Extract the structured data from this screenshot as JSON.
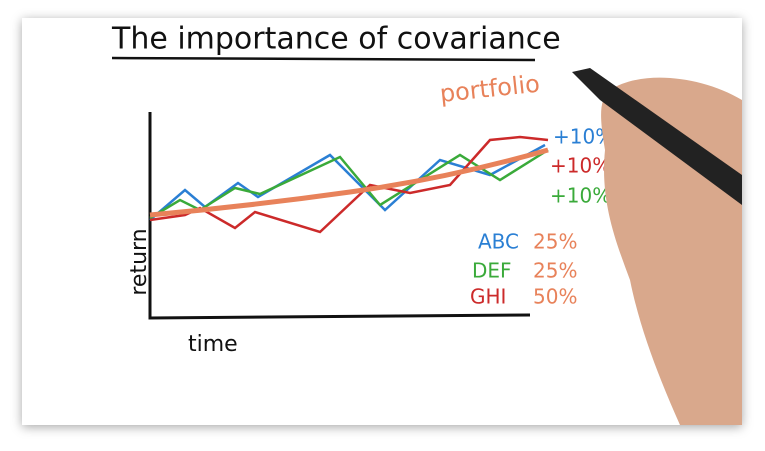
{
  "title": "The importance of covariance",
  "portfolio_label": "portfolio",
  "axes": {
    "y_label": "return",
    "x_label": "time"
  },
  "changes": [
    {
      "label": "+10%",
      "color": "#2a7fd4"
    },
    {
      "label": "+10%",
      "color": "#cc2a2a"
    },
    {
      "label": "+10%",
      "color": "#3aaa3a"
    }
  ],
  "holdings": [
    {
      "name": "ABC",
      "weight": "25%",
      "color": "#2a7fd4"
    },
    {
      "name": "DEF",
      "weight": "25%",
      "color": "#3aaa3a"
    },
    {
      "name": "GHI",
      "weight": "50%",
      "color": "#cc2a2a"
    }
  ]
}
